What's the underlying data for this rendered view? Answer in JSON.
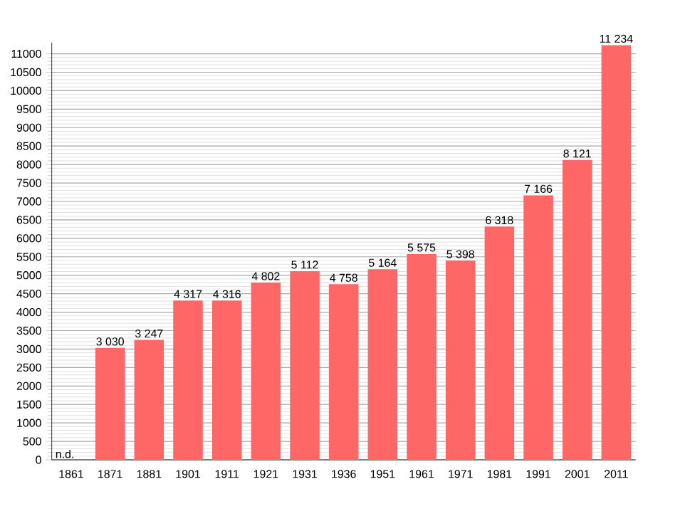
{
  "chart_data": {
    "type": "bar",
    "categories": [
      "1861",
      "1871",
      "1881",
      "1901",
      "1911",
      "1921",
      "1931",
      "1936",
      "1951",
      "1961",
      "1971",
      "1981",
      "1991",
      "2001",
      "2011"
    ],
    "values": [
      null,
      3030,
      3247,
      4317,
      4316,
      4802,
      5112,
      4758,
      5164,
      5575,
      5398,
      6318,
      7166,
      8121,
      11234
    ],
    "value_labels": [
      "n.d.",
      "3 030",
      "3 247",
      "4 317",
      "4 316",
      "4 802",
      "5 112",
      "4 758",
      "5 164",
      "5 575",
      "5 398",
      "6 318",
      "7 166",
      "8 121",
      "11 234"
    ],
    "color": "#ff6666",
    "ylim": [
      0,
      11300
    ],
    "yticks": [
      0,
      500,
      1000,
      1500,
      2000,
      2500,
      3000,
      3500,
      4000,
      4500,
      5000,
      5500,
      6000,
      6500,
      7000,
      7500,
      8000,
      8500,
      9000,
      9500,
      10000,
      10500,
      11000
    ],
    "grid": "y"
  }
}
